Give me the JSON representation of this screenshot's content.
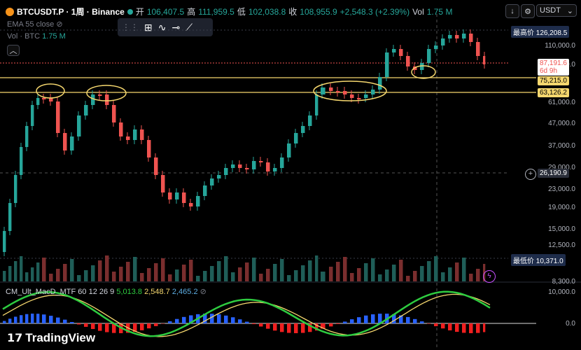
{
  "header": {
    "symbol": "BTCUSDT.P · 1周 · Binance",
    "open_label": "开",
    "open": "106,407.5",
    "high_label": "高",
    "high": "111,959.5",
    "low_label": "低",
    "low": "102,038.8",
    "close_label": "收",
    "close": "108,955.9",
    "change": "+2,548.3 (+2.39%)",
    "vol_label": "Vol",
    "vol": "1.75 M",
    "ema": "EMA 55 close",
    "vol_btc_label": "Vol · BTC",
    "vol_btc": "1.75 M",
    "currency": "USDT"
  },
  "price_axis": [
    "110,000.0",
    "95,000.0",
    "61,000.0",
    "47,000.0",
    "37,000.0",
    "29,000.0",
    "23,000.0",
    "19,000.0",
    "15,000.0",
    "12,500.0",
    "8,300.0"
  ],
  "tags": {
    "ath_label": "最高价",
    "ath": "126,208.5",
    "current": "87,191.6",
    "countdown": "6d 9h",
    "level1": "75,215.0",
    "level2": "63,126.2",
    "cursor": "26,190.9",
    "atl_label": "最低价",
    "atl": "10,371.0"
  },
  "macd": {
    "name": "CM_Ult_MacD_MTF 60 12 26 9",
    "v1": "5,013.8",
    "v2": "2,548.7",
    "v3": "2,465.2",
    "axis_top": "10,000.0",
    "axis_zero": "0.0"
  },
  "brand": "TradingView",
  "colors": {
    "up": "#26a69a",
    "down": "#ef5350",
    "level": "#f5d76e"
  }
}
